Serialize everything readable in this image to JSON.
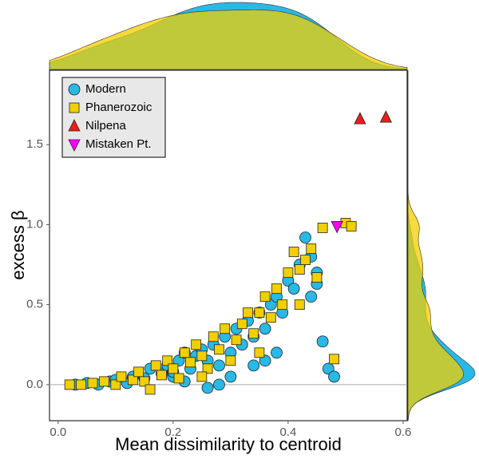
{
  "chart_data": {
    "type": "scatter",
    "xlabel": "Mean dissimilarity to centroid",
    "ylabel": "excess β",
    "xlim": [
      -0.015,
      0.607
    ],
    "ylim": [
      -0.225,
      1.965
    ],
    "xticks": [
      {
        "value": 0,
        "label": "0.0"
      },
      0.2,
      0.4,
      0.6
    ],
    "yticks": [
      {
        "value": 0,
        "label": "0.0"
      },
      0.5,
      {
        "value": 1,
        "label": "1.0"
      },
      1.5
    ],
    "reference_line": 0,
    "legend": "top-left",
    "marginal_density": true,
    "series": [
      {
        "name": "Modern",
        "color": "#29b9e6",
        "marker": "circle",
        "density": true,
        "x": [
          0.03,
          0.05,
          0.07,
          0.09,
          0.1,
          0.12,
          0.13,
          0.15,
          0.16,
          0.18,
          0.19,
          0.2,
          0.21,
          0.22,
          0.23,
          0.24,
          0.25,
          0.26,
          0.27,
          0.28,
          0.29,
          0.3,
          0.31,
          0.32,
          0.33,
          0.34,
          0.35,
          0.36,
          0.37,
          0.38,
          0.39,
          0.4,
          0.41,
          0.42,
          0.43,
          0.44,
          0.45,
          0.46,
          0.47,
          0.48,
          0.38,
          0.36,
          0.34,
          0.3,
          0.28,
          0.26,
          0.22,
          0.2,
          0.44,
          0.45
        ],
        "values": [
          0.0,
          0.01,
          0.0,
          0.02,
          0.03,
          0.01,
          0.05,
          0.04,
          0.1,
          0.07,
          0.12,
          0.05,
          0.15,
          0.2,
          0.1,
          0.18,
          0.22,
          0.15,
          0.25,
          0.12,
          0.3,
          0.2,
          0.35,
          0.25,
          0.4,
          0.3,
          0.45,
          0.35,
          0.5,
          0.55,
          0.45,
          0.65,
          0.6,
          0.75,
          0.92,
          0.8,
          0.7,
          0.27,
          0.1,
          0.05,
          0.2,
          0.15,
          0.12,
          0.05,
          0.0,
          -0.02,
          0.02,
          0.08,
          0.55,
          0.63
        ]
      },
      {
        "name": "Phanerozoic",
        "color": "#f2cf00",
        "marker": "square",
        "density": true,
        "x": [
          0.02,
          0.04,
          0.06,
          0.08,
          0.1,
          0.11,
          0.13,
          0.14,
          0.15,
          0.17,
          0.18,
          0.19,
          0.2,
          0.21,
          0.22,
          0.23,
          0.24,
          0.25,
          0.26,
          0.27,
          0.28,
          0.29,
          0.3,
          0.31,
          0.32,
          0.33,
          0.34,
          0.35,
          0.36,
          0.37,
          0.38,
          0.39,
          0.4,
          0.41,
          0.42,
          0.43,
          0.44,
          0.46,
          0.48,
          0.5,
          0.51,
          0.45,
          0.42,
          0.35,
          0.25,
          0.16
        ],
        "values": [
          0.0,
          0.0,
          0.01,
          0.02,
          0.0,
          0.05,
          0.03,
          0.08,
          0.02,
          0.12,
          0.06,
          0.15,
          0.1,
          0.04,
          0.2,
          0.14,
          0.25,
          0.18,
          0.1,
          0.3,
          0.22,
          0.35,
          0.15,
          0.28,
          0.38,
          0.45,
          0.32,
          0.2,
          0.55,
          0.42,
          0.6,
          0.5,
          0.7,
          0.83,
          0.72,
          0.78,
          0.85,
          0.98,
          0.16,
          1.01,
          0.99,
          0.67,
          0.5,
          0.45,
          0.05,
          -0.03
        ]
      },
      {
        "name": "Nilpena",
        "color": "#ee1c1c",
        "marker": "triangle-up",
        "x": [
          0.525,
          0.57
        ],
        "values": [
          1.66,
          1.67
        ]
      },
      {
        "name": "Mistaken Pt.",
        "color": "#ff00ff",
        "marker": "triangle-down",
        "x": [
          0.485
        ],
        "values": [
          0.99
        ]
      }
    ]
  }
}
